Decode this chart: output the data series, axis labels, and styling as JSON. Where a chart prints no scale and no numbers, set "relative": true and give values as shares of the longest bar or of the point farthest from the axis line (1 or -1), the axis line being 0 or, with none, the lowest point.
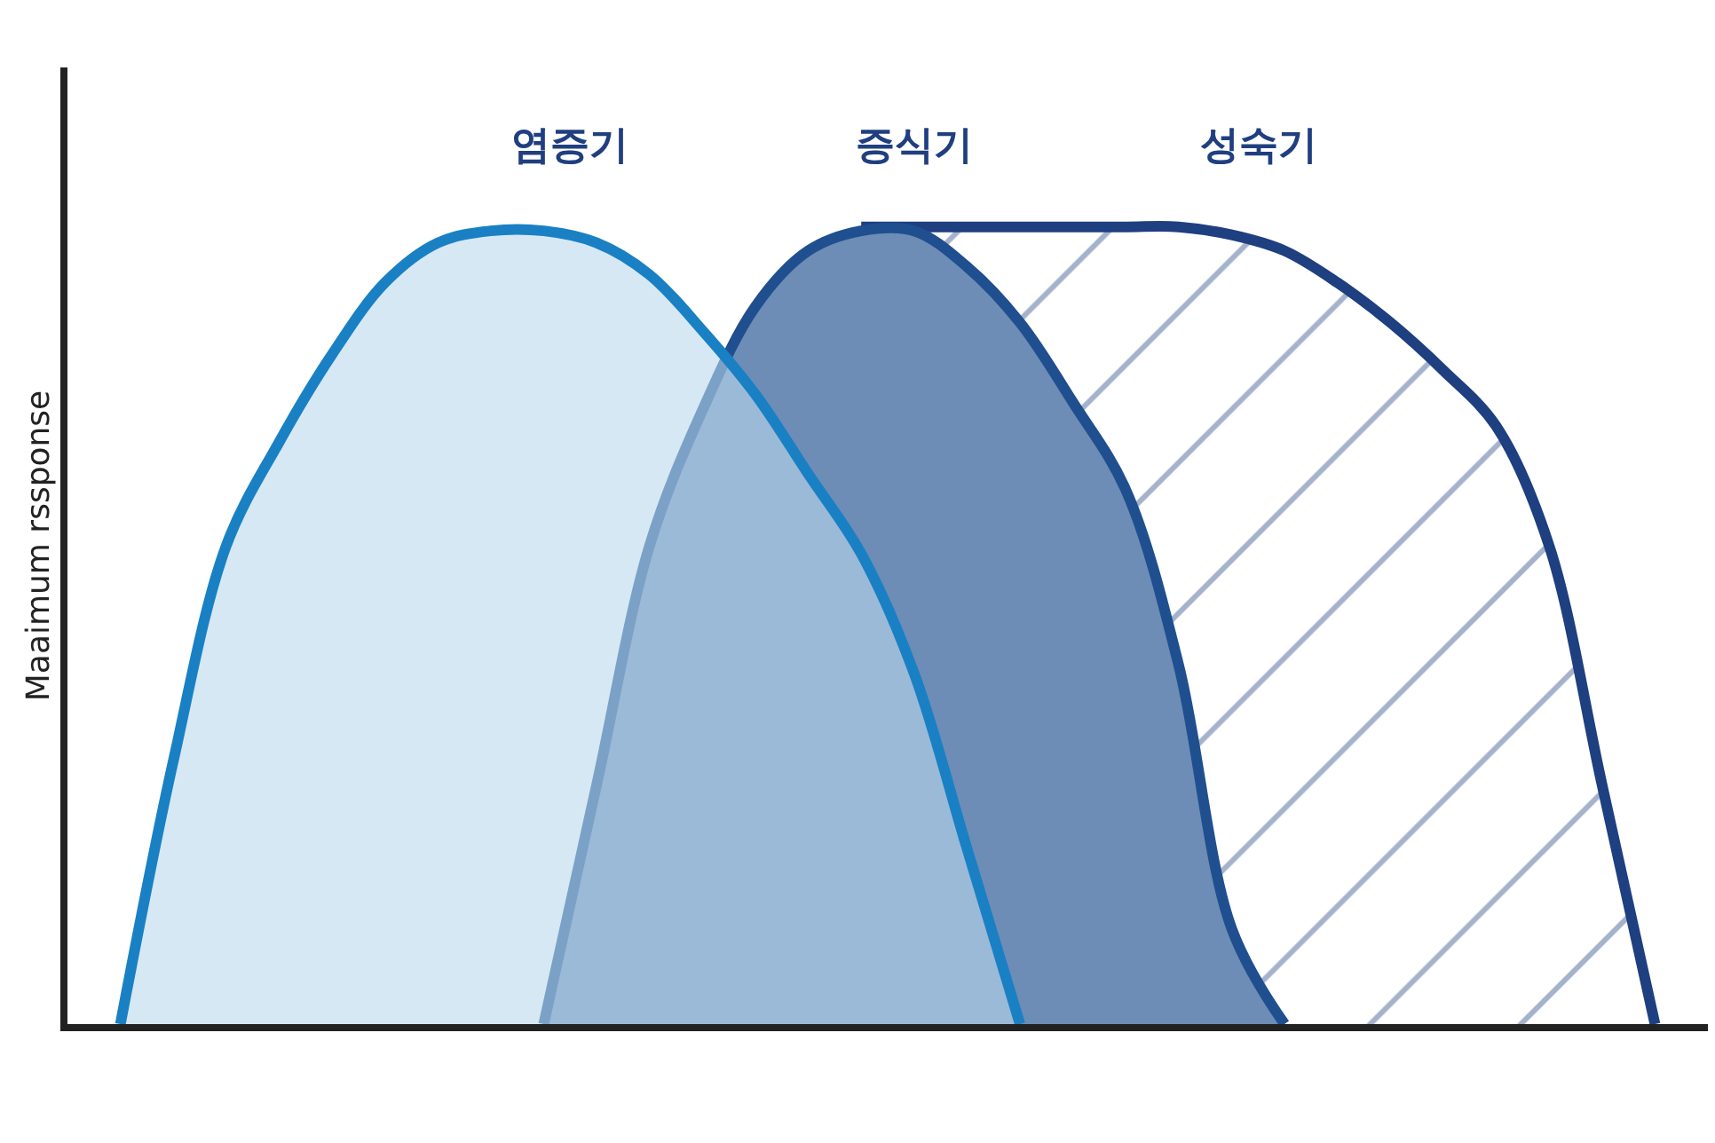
{
  "chart_data": {
    "type": "area",
    "relative": true,
    "ylabel": "Maaimum rssponse",
    "legend": false,
    "categories": [
      null,
      null,
      null,
      null,
      null,
      null,
      null,
      null,
      null,
      null,
      null,
      null,
      null,
      null,
      null,
      null,
      null,
      null,
      null,
      null,
      null,
      null,
      null,
      null,
      null,
      null,
      null,
      null,
      null,
      null,
      null,
      null
    ],
    "series": [
      {
        "name": "염증기",
        "color": "#1a80c4",
        "values": [
          null,
          0,
          0.33,
          0.6,
          0.73,
          0.84,
          0.93,
          0.98,
          0.995,
          0.995,
          0.98,
          0.94,
          0.87,
          0.79,
          0.69,
          0.59,
          0.44,
          0.22,
          0,
          null,
          null,
          null,
          null,
          null,
          null,
          null,
          null,
          null,
          null,
          null,
          null,
          null
        ]
      },
      {
        "name": "증식기",
        "color": "#1f4f8f",
        "values": [
          null,
          null,
          null,
          null,
          null,
          null,
          null,
          null,
          null,
          0,
          0.3,
          0.6,
          0.77,
          0.9,
          0.97,
          0.995,
          0.995,
          0.95,
          0.88,
          0.78,
          0.67,
          0.45,
          0.12,
          0,
          null,
          null,
          null,
          null,
          null,
          null,
          null,
          null
        ]
      },
      {
        "name": "성숙기",
        "color": "#1e3f80",
        "values": [
          null,
          null,
          null,
          null,
          null,
          null,
          null,
          null,
          null,
          null,
          null,
          null,
          null,
          null,
          null,
          1,
          1,
          1,
          1,
          1,
          1,
          1,
          0.99,
          0.97,
          0.93,
          0.88,
          0.82,
          0.75,
          0.6,
          0.3,
          0,
          null
        ]
      }
    ]
  }
}
